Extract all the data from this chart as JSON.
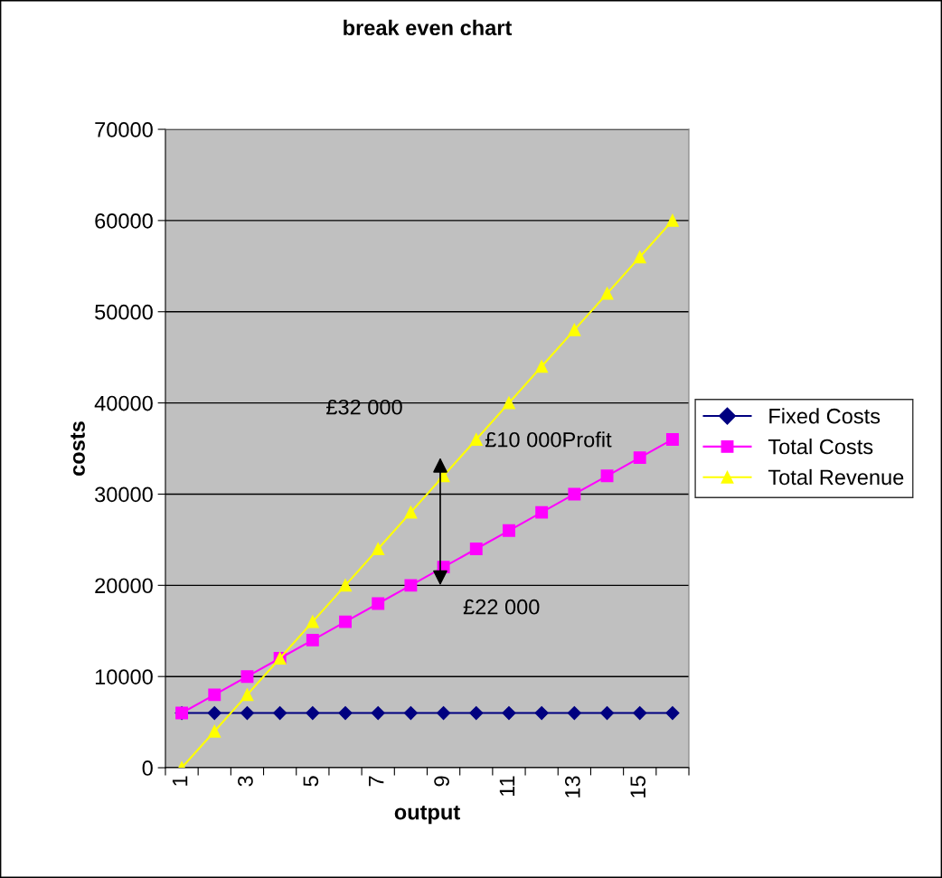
{
  "chart_data": {
    "type": "line",
    "title": "break even chart",
    "xlabel": "output",
    "ylabel": "costs",
    "categories": [
      "1",
      null,
      "3",
      null,
      "5",
      null,
      "7",
      null,
      "9",
      null,
      "11",
      null,
      "13",
      null,
      "15",
      null
    ],
    "series": [
      {
        "name": "Fixed Costs",
        "color": "#000080",
        "marker": "diamond",
        "values": [
          6000,
          6000,
          6000,
          6000,
          6000,
          6000,
          6000,
          6000,
          6000,
          6000,
          6000,
          6000,
          6000,
          6000,
          6000,
          6000
        ]
      },
      {
        "name": "Total Costs",
        "color": "#ff00ff",
        "marker": "square",
        "values": [
          6000,
          8000,
          10000,
          12000,
          14000,
          16000,
          18000,
          20000,
          22000,
          24000,
          26000,
          28000,
          30000,
          32000,
          34000,
          36000
        ]
      },
      {
        "name": "Total Revenue",
        "color": "#ffff00",
        "marker": "triangle",
        "values": [
          0,
          4000,
          8000,
          12000,
          16000,
          20000,
          24000,
          28000,
          32000,
          36000,
          40000,
          44000,
          48000,
          52000,
          56000,
          60000
        ]
      }
    ],
    "ylim": [
      0,
      70000
    ],
    "yticks": [
      0,
      10000,
      20000,
      30000,
      40000,
      50000,
      60000,
      70000
    ],
    "grid": "y",
    "legend": "right",
    "annotations": [
      "£32 000",
      "£22 000",
      "£10 000Profit"
    ]
  }
}
